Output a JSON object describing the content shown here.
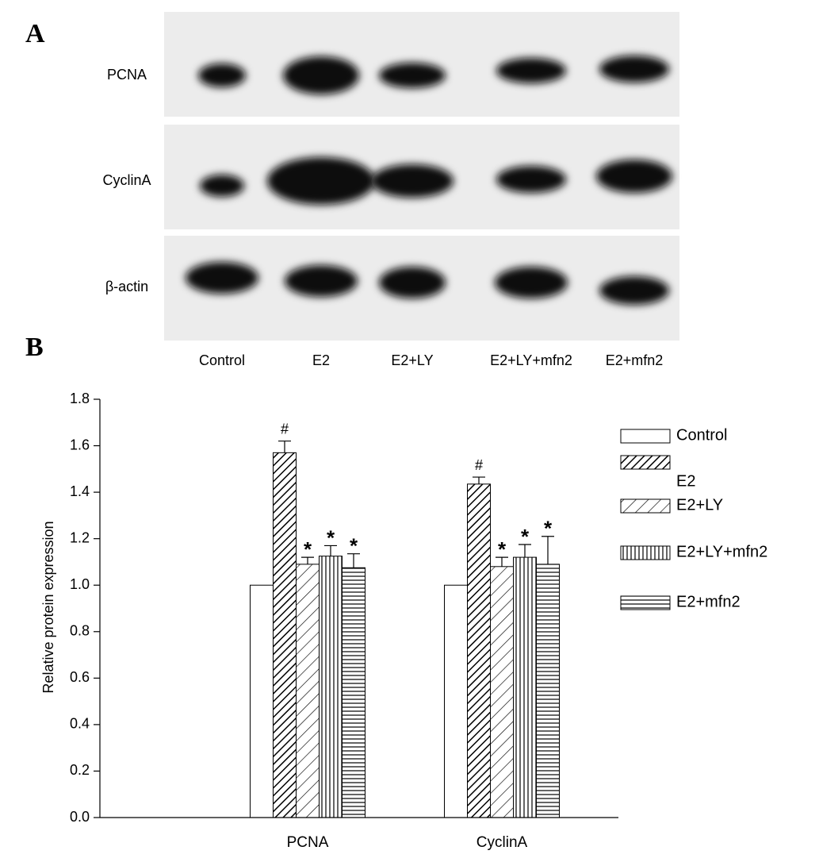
{
  "panels": {
    "a": "A",
    "b": "B"
  },
  "blot": {
    "rows": [
      "PCNA",
      "CyclinA",
      "β-actin"
    ],
    "lanes": [
      "Control",
      "E2",
      "E2+LY",
      "E2+LY+mfn2",
      "E2+mfn2"
    ]
  },
  "chart_data": {
    "type": "bar",
    "y_label": "Relative protein expression",
    "categories": [
      "PCNA",
      "CyclinA"
    ],
    "ylim": [
      0,
      1.8
    ],
    "yticks": [
      {
        "value": 0,
        "label": "0.0"
      },
      0.2,
      0.4,
      0.6,
      0.8,
      {
        "value": 1,
        "label": "1.0"
      },
      1.2,
      1.4,
      1.6,
      1.8
    ],
    "series": [
      {
        "name": "Control",
        "pattern": "none",
        "values": [
          1.0,
          1.0
        ],
        "errors": [
          null,
          null
        ],
        "annotations": [
          null,
          null
        ]
      },
      {
        "name": "E2",
        "pattern": "dense-diagonal",
        "values": [
          1.57,
          1.435
        ],
        "errors": [
          0.05,
          0.03
        ],
        "annotations": [
          "#",
          "#"
        ]
      },
      {
        "name": "E2+LY",
        "pattern": "sparse-diagonal",
        "values": [
          1.09,
          1.08
        ],
        "errors": [
          0.03,
          0.04
        ],
        "annotations": [
          "*",
          "*"
        ]
      },
      {
        "name": "E2+LY+mfn2",
        "pattern": "vertical",
        "values": [
          1.125,
          1.12
        ],
        "errors": [
          0.045,
          0.055
        ],
        "annotations": [
          "*",
          "*"
        ]
      },
      {
        "name": "E2+mfn2",
        "pattern": "horizontal",
        "values": [
          1.075,
          1.09
        ],
        "errors": [
          0.06,
          0.12
        ],
        "annotations": [
          "*",
          "*"
        ]
      }
    ]
  }
}
